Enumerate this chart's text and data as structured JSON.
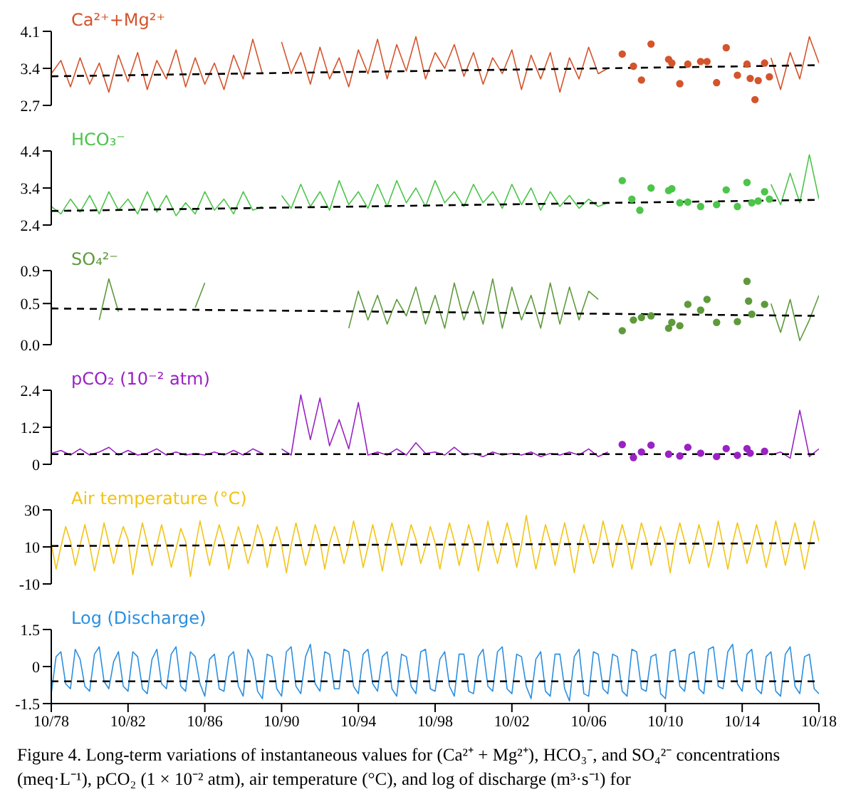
{
  "chart_data": [
    {
      "type": "line",
      "title": "Ca²⁺+Mg²⁺",
      "xlim": [
        "1978-10",
        "2018-10"
      ],
      "ylim": [
        2.7,
        4.1
      ],
      "yticks": [
        2.7,
        3.4,
        4.1
      ],
      "tick_labels": "y",
      "x": [
        "1978-10",
        "1979-04",
        "1979-10",
        "1980-04",
        "1980-10",
        "1981-04",
        "1981-10",
        "1982-04",
        "1982-10",
        "1983-04",
        "1983-10",
        "1984-04",
        "1984-10",
        "1985-04",
        "1985-10",
        "1986-04",
        "1986-10",
        "1987-04",
        "1987-10",
        "1988-04",
        "1988-10",
        "1989-04",
        "1989-10",
        "1990-04",
        "1990-10",
        "1991-04",
        "1991-10",
        "1992-04",
        "1992-10",
        "1993-04",
        "1993-10",
        "1994-04",
        "1994-10",
        "1995-04",
        "1995-10",
        "1996-04",
        "1996-10",
        "1997-04",
        "1997-10",
        "1998-04",
        "1998-10",
        "1999-04",
        "1999-10",
        "2000-04",
        "2000-10",
        "2001-04",
        "2001-10",
        "2002-04",
        "2002-10",
        "2003-04",
        "2003-10",
        "2004-04",
        "2004-10",
        "2005-04",
        "2005-10",
        "2006-04",
        "2006-10",
        "2007-04",
        "2007-10",
        "2008-04",
        "2008-10",
        "2009-04",
        "2009-10",
        "2010-04",
        "2010-10",
        "2011-04",
        "2011-10",
        "2012-04",
        "2012-10",
        "2013-04",
        "2013-10",
        "2014-04",
        "2014-10",
        "2015-04",
        "2015-10",
        "2016-04",
        "2016-10",
        "2017-04",
        "2017-10",
        "2018-04",
        "2018-10"
      ],
      "series": [
        {
          "color": "#d4542c",
          "values": [
            3.3,
            3.55,
            3.05,
            3.6,
            3.1,
            3.5,
            2.95,
            3.65,
            3.15,
            3.7,
            3.0,
            3.55,
            3.2,
            3.75,
            3.05,
            3.6,
            3.1,
            3.5,
            3.0,
            3.65,
            3.2,
            3.95,
            3.3,
            null,
            3.9,
            3.3,
            3.7,
            3.1,
            3.8,
            3.2,
            3.6,
            3.05,
            3.75,
            3.3,
            3.95,
            3.2,
            3.85,
            3.35,
            4.0,
            3.2,
            3.7,
            3.4,
            3.85,
            3.25,
            3.7,
            3.1,
            3.6,
            3.3,
            3.75,
            3.0,
            3.65,
            3.2,
            3.7,
            2.95,
            3.6,
            3.2,
            3.8,
            3.3,
            3.4,
            null,
            null,
            null,
            null,
            null,
            null,
            null,
            null,
            null,
            null,
            null,
            null,
            null,
            null,
            null,
            null,
            3.6,
            3.0,
            3.7,
            3.2,
            4.0,
            3.5
          ]
        },
        {
          "type": "scatter",
          "marker": "circle",
          "color": "#d4542c",
          "x": [
            "2008-07",
            "2009-02",
            "2009-07",
            "2010-01",
            "2010-12",
            "2011-02",
            "2011-07",
            "2011-12",
            "2012-08",
            "2012-12",
            "2013-06",
            "2013-12",
            "2014-07",
            "2015-01",
            "2015-03",
            "2015-06",
            "2015-08",
            "2015-12",
            "2016-03"
          ],
          "values": [
            3.67,
            3.44,
            3.18,
            3.86,
            3.57,
            3.5,
            3.11,
            3.48,
            3.53,
            3.53,
            3.13,
            3.79,
            3.27,
            3.48,
            3.21,
            2.81,
            3.17,
            3.5,
            3.24
          ]
        },
        {
          "color": "#000000",
          "line_style": "dashed",
          "x": [
            "1978-10",
            "2018-10"
          ],
          "values": [
            3.25,
            3.46
          ]
        }
      ]
    },
    {
      "type": "line",
      "title": "HCO₃⁻",
      "xlim": [
        "1978-10",
        "2018-10"
      ],
      "ylim": [
        2.4,
        4.4
      ],
      "yticks": [
        2.4,
        3.4,
        4.4
      ],
      "tick_labels": "y",
      "x": [
        "1978-10",
        "1979-04",
        "1979-10",
        "1980-04",
        "1980-10",
        "1981-04",
        "1981-10",
        "1982-04",
        "1982-10",
        "1983-04",
        "1983-10",
        "1984-04",
        "1984-10",
        "1985-04",
        "1985-10",
        "1986-04",
        "1986-10",
        "1987-04",
        "1987-10",
        "1988-04",
        "1988-10",
        "1989-04",
        "1989-10",
        "1990-04",
        "1990-10",
        "1991-04",
        "1991-10",
        "1992-04",
        "1992-10",
        "1993-04",
        "1993-10",
        "1994-04",
        "1994-10",
        "1995-04",
        "1995-10",
        "1996-04",
        "1996-10",
        "1997-04",
        "1997-10",
        "1998-04",
        "1998-10",
        "1999-04",
        "1999-10",
        "2000-04",
        "2000-10",
        "2001-04",
        "2001-10",
        "2002-04",
        "2002-10",
        "2003-04",
        "2003-10",
        "2004-04",
        "2004-10",
        "2005-04",
        "2005-10",
        "2006-04",
        "2006-10",
        "2007-04",
        "2007-10",
        "2008-04",
        "2008-10",
        "2009-04",
        "2009-10",
        "2010-04",
        "2010-10",
        "2011-04",
        "2011-10",
        "2012-04",
        "2012-10",
        "2013-04",
        "2013-10",
        "2014-04",
        "2014-10",
        "2015-04",
        "2015-10",
        "2016-04",
        "2016-10",
        "2017-04",
        "2017-10",
        "2018-04",
        "2018-10"
      ],
      "series": [
        {
          "color": "#4cc54a",
          "values": [
            2.9,
            2.7,
            3.1,
            2.75,
            3.2,
            2.7,
            3.3,
            2.8,
            3.1,
            2.7,
            3.3,
            2.75,
            3.2,
            2.65,
            3.0,
            2.7,
            3.3,
            2.8,
            3.1,
            2.7,
            3.3,
            2.8,
            2.9,
            null,
            3.2,
            2.85,
            3.5,
            2.9,
            3.3,
            2.8,
            3.6,
            2.95,
            3.3,
            2.85,
            3.5,
            2.9,
            3.6,
            3.0,
            3.4,
            2.9,
            3.6,
            3.0,
            3.3,
            2.9,
            3.5,
            3.0,
            3.3,
            2.85,
            3.5,
            2.95,
            3.4,
            2.8,
            3.3,
            2.9,
            3.2,
            2.85,
            3.1,
            2.9,
            3.0,
            null,
            null,
            null,
            null,
            null,
            null,
            null,
            null,
            null,
            null,
            null,
            null,
            null,
            null,
            null,
            null,
            3.5,
            2.95,
            3.8,
            3.0,
            4.3,
            3.1
          ]
        },
        {
          "type": "scatter",
          "marker": "circle",
          "color": "#4cc54a",
          "x": [
            "2008-07",
            "2009-01",
            "2009-06",
            "2010-01",
            "2010-12",
            "2011-02",
            "2011-07",
            "2011-12",
            "2012-08",
            "2013-06",
            "2013-12",
            "2014-07",
            "2015-01",
            "2015-04",
            "2015-08",
            "2015-12",
            "2016-03"
          ],
          "values": [
            3.6,
            3.1,
            2.8,
            3.4,
            3.33,
            3.38,
            3.0,
            3.02,
            2.9,
            2.95,
            3.35,
            2.9,
            3.55,
            3.0,
            3.05,
            3.3,
            3.1
          ]
        },
        {
          "color": "#000000",
          "line_style": "dashed",
          "x": [
            "1978-10",
            "2018-10"
          ],
          "values": [
            2.78,
            3.08
          ]
        }
      ]
    },
    {
      "type": "line",
      "title": "SO₄²⁻",
      "xlim": [
        "1978-10",
        "2018-10"
      ],
      "ylim": [
        0,
        0.9
      ],
      "yticks": [
        {
          "value": 0,
          "label": "0.0"
        },
        0.5,
        0.9
      ],
      "tick_labels": "y",
      "x": [
        "1981-04",
        "1981-10",
        "1982-04",
        "1982-10",
        "1983-04",
        "1983-10",
        "1984-04",
        "1984-10",
        "1985-04",
        "1985-10",
        "1986-04",
        "1986-10",
        "1987-04",
        "1987-10",
        "1988-04",
        "1988-10",
        "1989-04",
        "1989-10",
        "1990-04",
        "1990-10",
        "1991-04",
        "1991-10",
        "1992-04",
        "1992-10",
        "1993-04",
        "1993-10",
        "1994-04",
        "1994-10",
        "1995-04",
        "1995-10",
        "1996-04",
        "1996-10",
        "1997-04",
        "1997-10",
        "1998-04",
        "1998-10",
        "1999-04",
        "1999-10",
        "2000-04",
        "2000-10",
        "2001-04",
        "2001-10",
        "2002-04",
        "2002-10",
        "2003-04",
        "2003-10",
        "2004-04",
        "2004-10",
        "2005-04",
        "2005-10",
        "2006-04",
        "2006-10",
        "2007-04",
        "2007-10",
        "2008-04",
        "2008-10",
        "2009-04",
        "2009-10",
        "2010-04",
        "2010-10",
        "2011-04",
        "2011-10",
        "2012-04",
        "2012-10",
        "2013-04",
        "2013-10",
        "2014-04",
        "2014-10",
        "2015-04",
        "2015-10",
        "2016-04",
        "2016-10",
        "2017-04",
        "2017-10",
        "2018-04",
        "2018-10"
      ],
      "series": [
        {
          "color": "#5e9a3c",
          "values": [
            0.3,
            0.8,
            0.4,
            null,
            null,
            null,
            null,
            null,
            null,
            null,
            0.45,
            0.75,
            null,
            null,
            null,
            null,
            null,
            null,
            null,
            null,
            null,
            null,
            null,
            null,
            null,
            null,
            0.2,
            0.65,
            0.3,
            0.6,
            0.25,
            0.55,
            0.35,
            0.7,
            0.25,
            0.6,
            0.2,
            0.75,
            0.3,
            0.65,
            0.25,
            0.8,
            0.2,
            0.7,
            0.3,
            0.6,
            0.2,
            0.75,
            0.25,
            0.7,
            0.3,
            0.65,
            0.55,
            null,
            null,
            null,
            null,
            null,
            null,
            null,
            null,
            null,
            null,
            null,
            null,
            null,
            null,
            null,
            null,
            null,
            0.5,
            0.15,
            0.55,
            0.05,
            0.3,
            0.6
          ]
        },
        {
          "type": "scatter",
          "marker": "circle",
          "color": "#5e9a3c",
          "x": [
            "2008-07",
            "2009-02",
            "2009-07",
            "2010-01",
            "2010-12",
            "2011-02",
            "2011-07",
            "2011-12",
            "2012-08",
            "2012-12",
            "2013-06",
            "2014-07",
            "2015-01",
            "2015-02",
            "2015-04",
            "2015-12"
          ],
          "values": [
            0.17,
            0.3,
            0.33,
            0.35,
            0.2,
            0.27,
            0.23,
            0.49,
            0.42,
            0.55,
            0.27,
            0.28,
            0.77,
            0.53,
            0.37,
            0.49
          ]
        },
        {
          "color": "#000000",
          "line_style": "dashed",
          "x": [
            "1978-10",
            "2018-10"
          ],
          "values": [
            0.44,
            0.35
          ]
        }
      ]
    },
    {
      "type": "line",
      "title": "pCO₂ (10⁻² atm)",
      "xlim": [
        "1978-10",
        "2018-10"
      ],
      "ylim": [
        0,
        2.4
      ],
      "yticks": [
        0,
        1.2,
        2.4
      ],
      "tick_labels": "y",
      "x": [
        "1978-10",
        "1979-04",
        "1979-10",
        "1980-04",
        "1980-10",
        "1981-04",
        "1981-10",
        "1982-04",
        "1982-10",
        "1983-04",
        "1983-10",
        "1984-04",
        "1984-10",
        "1985-04",
        "1985-10",
        "1986-04",
        "1986-10",
        "1987-04",
        "1987-10",
        "1988-04",
        "1988-10",
        "1989-04",
        "1989-10",
        "1990-04",
        "1990-10",
        "1991-04",
        "1991-10",
        "1992-04",
        "1992-10",
        "1993-04",
        "1993-10",
        "1994-04",
        "1994-10",
        "1995-04",
        "1995-10",
        "1996-04",
        "1996-10",
        "1997-04",
        "1997-10",
        "1998-04",
        "1998-10",
        "1999-04",
        "1999-10",
        "2000-04",
        "2000-10",
        "2001-04",
        "2001-10",
        "2002-04",
        "2002-10",
        "2003-04",
        "2003-10",
        "2004-04",
        "2004-10",
        "2005-04",
        "2005-10",
        "2006-04",
        "2006-10",
        "2007-04",
        "2007-10",
        "2008-04",
        "2008-10",
        "2009-04",
        "2009-10",
        "2010-04",
        "2010-10",
        "2011-04",
        "2011-10",
        "2012-04",
        "2012-10",
        "2013-04",
        "2013-10",
        "2014-04",
        "2014-10",
        "2015-04",
        "2015-10",
        "2016-04",
        "2016-10",
        "2017-04",
        "2017-10",
        "2018-04",
        "2018-10"
      ],
      "series": [
        {
          "color": "#9a22c4",
          "values": [
            0.35,
            0.45,
            0.3,
            0.5,
            0.3,
            0.4,
            0.55,
            0.3,
            0.45,
            0.3,
            0.35,
            0.5,
            0.3,
            0.4,
            0.3,
            0.35,
            0.3,
            0.4,
            0.3,
            0.45,
            0.3,
            0.5,
            0.35,
            null,
            0.5,
            0.3,
            2.25,
            0.8,
            2.15,
            0.6,
            1.45,
            0.5,
            2.0,
            0.3,
            0.4,
            0.3,
            0.5,
            0.3,
            0.7,
            0.35,
            0.4,
            0.3,
            0.55,
            0.3,
            0.35,
            0.25,
            0.4,
            0.3,
            0.35,
            0.3,
            0.4,
            0.25,
            0.35,
            0.3,
            0.4,
            0.3,
            0.5,
            0.25,
            0.4,
            null,
            null,
            null,
            null,
            null,
            null,
            null,
            null,
            null,
            null,
            null,
            null,
            null,
            null,
            null,
            null,
            0.3,
            0.4,
            0.2,
            1.75,
            0.25,
            0.5
          ]
        },
        {
          "type": "scatter",
          "marker": "circle",
          "color": "#9a22c4",
          "x": [
            "2008-07",
            "2009-02",
            "2009-07",
            "2010-01",
            "2010-12",
            "2011-07",
            "2011-12",
            "2012-08",
            "2013-06",
            "2013-12",
            "2014-07",
            "2015-01",
            "2015-03",
            "2015-12"
          ],
          "values": [
            0.64,
            0.22,
            0.4,
            0.62,
            0.33,
            0.27,
            0.55,
            0.36,
            0.25,
            0.51,
            0.29,
            0.51,
            0.36,
            0.42
          ]
        },
        {
          "color": "#000000",
          "line_style": "dashed",
          "x": [
            "1978-10",
            "2018-10"
          ],
          "values": [
            0.33,
            0.33
          ]
        }
      ]
    },
    {
      "type": "line",
      "title": "Air temperature (°C)",
      "xlim": [
        "1978-10",
        "2018-10"
      ],
      "ylim": [
        -10,
        30
      ],
      "yticks": [
        -10,
        10,
        30
      ],
      "tick_labels": "y",
      "x": [
        "1978-10",
        "1979-01",
        "1979-04",
        "1979-07",
        "1979-10",
        "1980-01",
        "1980-04",
        "1980-07",
        "1980-10",
        "1981-01",
        "1981-04",
        "1981-07",
        "1981-10",
        "1982-01",
        "1982-04",
        "1982-07",
        "1982-10",
        "1983-01",
        "1983-04",
        "1983-07",
        "1983-10",
        "1984-01",
        "1984-04",
        "1984-07",
        "1984-10",
        "1985-01",
        "1985-04",
        "1985-07",
        "1985-10",
        "1986-01",
        "1986-04",
        "1986-07",
        "1986-10",
        "1987-01",
        "1987-04",
        "1987-07",
        "1987-10",
        "1988-01",
        "1988-04",
        "1988-07",
        "1988-10",
        "1989-01",
        "1989-04",
        "1989-07",
        "1989-10",
        "1990-01",
        "1990-04",
        "1990-07",
        "1990-10",
        "1991-01",
        "1991-04",
        "1991-07",
        "1991-10",
        "1992-01",
        "1992-04",
        "1992-07",
        "1992-10",
        "1993-01",
        "1993-04",
        "1993-07",
        "1993-10",
        "1994-01",
        "1994-04",
        "1994-07",
        "1994-10",
        "1995-01",
        "1995-04",
        "1995-07",
        "1995-10",
        "1996-01",
        "1996-04",
        "1996-07",
        "1996-10",
        "1997-01",
        "1997-04",
        "1997-07",
        "1997-10",
        "1998-01",
        "1998-04",
        "1998-07",
        "1998-10",
        "1999-01",
        "1999-04",
        "1999-07",
        "1999-10",
        "2000-01",
        "2000-04",
        "2000-07",
        "2000-10",
        "2001-01",
        "2001-04",
        "2001-07",
        "2001-10",
        "2002-01",
        "2002-04",
        "2002-07",
        "2002-10",
        "2003-01",
        "2003-04",
        "2003-07",
        "2003-10",
        "2004-01",
        "2004-04",
        "2004-07",
        "2004-10",
        "2005-01",
        "2005-04",
        "2005-07",
        "2005-10",
        "2006-01",
        "2006-04",
        "2006-07",
        "2006-10",
        "2007-01",
        "2007-04",
        "2007-07",
        "2007-10",
        "2008-01",
        "2008-04",
        "2008-07",
        "2008-10",
        "2009-01",
        "2009-04",
        "2009-07",
        "2009-10",
        "2010-01",
        "2010-04",
        "2010-07",
        "2010-10",
        "2011-01",
        "2011-04",
        "2011-07",
        "2011-10",
        "2012-01",
        "2012-04",
        "2012-07",
        "2012-10",
        "2013-01",
        "2013-04",
        "2013-07",
        "2013-10",
        "2014-01",
        "2014-04",
        "2014-07",
        "2014-10",
        "2015-01",
        "2015-04",
        "2015-07",
        "2015-10",
        "2016-01",
        "2016-04",
        "2016-07",
        "2016-10",
        "2017-01",
        "2017-04",
        "2017-07",
        "2017-10",
        "2018-01",
        "2018-04",
        "2018-07",
        "2018-10"
      ],
      "series": [
        {
          "color": "#f2c417",
          "values": [
            12,
            -2,
            10,
            21,
            13,
            0,
            11,
            22,
            11,
            -3,
            9,
            23,
            12,
            1,
            12,
            21,
            14,
            -5,
            10,
            23,
            12,
            0,
            11,
            22,
            11,
            -1,
            9,
            20,
            13,
            -6,
            10,
            24,
            12,
            0,
            12,
            22,
            13,
            -2,
            11,
            21,
            12,
            1,
            10,
            22,
            14,
            -1,
            12,
            21,
            11,
            -4,
            11,
            23,
            12,
            0,
            10,
            22,
            13,
            -2,
            12,
            21,
            12,
            1,
            11,
            24,
            13,
            -1,
            10,
            22,
            11,
            -3,
            12,
            23,
            12,
            0,
            11,
            22,
            14,
            1,
            10,
            21,
            12,
            -2,
            12,
            23,
            13,
            0,
            11,
            22,
            12,
            -3,
            10,
            24,
            11,
            1,
            12,
            23,
            13,
            -1,
            11,
            27,
            12,
            -2,
            10,
            22,
            13,
            0,
            12,
            23,
            11,
            -4,
            11,
            22,
            12,
            1,
            10,
            24,
            13,
            -1,
            12,
            22,
            12,
            -2,
            11,
            23,
            14,
            0,
            10,
            21,
            12,
            -4,
            12,
            23,
            13,
            1,
            11,
            22,
            12,
            -1,
            10,
            24,
            11,
            -2,
            12,
            23,
            13,
            1,
            11,
            22,
            12,
            -1,
            10,
            24,
            13,
            0,
            12,
            23,
            12,
            -2,
            11,
            24,
            13
          ]
        },
        {
          "color": "#000000",
          "line_style": "dashed",
          "x": [
            "1978-10",
            "2018-10"
          ],
          "values": [
            10.5,
            12
          ]
        }
      ]
    },
    {
      "type": "line",
      "title": "Log (Discharge)",
      "xlim": [
        "1978-10",
        "2018-10"
      ],
      "ylim": [
        -1.5,
        1.5
      ],
      "yticks": [
        -1.5,
        0,
        1.5
      ],
      "xticks": [
        {
          "value": "1978-10",
          "label": "10/78"
        },
        {
          "value": "1982-10",
          "label": "10/82"
        },
        {
          "value": "1986-10",
          "label": "10/86"
        },
        {
          "value": "1990-10",
          "label": "10/90"
        },
        {
          "value": "1994-10",
          "label": "10/94"
        },
        {
          "value": "1998-10",
          "label": "10/98"
        },
        {
          "value": "2002-10",
          "label": "10/02"
        },
        {
          "value": "2006-10",
          "label": "10/06"
        },
        {
          "value": "2010-10",
          "label": "10/10"
        },
        {
          "value": "2014-10",
          "label": "10/14"
        },
        {
          "value": "2018-10",
          "label": "10/18"
        }
      ],
      "x": [
        "1978-10",
        "1979-01",
        "1979-04",
        "1979-07",
        "1979-10",
        "1980-01",
        "1980-04",
        "1980-07",
        "1980-10",
        "1981-01",
        "1981-04",
        "1981-07",
        "1981-10",
        "1982-01",
        "1982-04",
        "1982-07",
        "1982-10",
        "1983-01",
        "1983-04",
        "1983-07",
        "1983-10",
        "1984-01",
        "1984-04",
        "1984-07",
        "1984-10",
        "1985-01",
        "1985-04",
        "1985-07",
        "1985-10",
        "1986-01",
        "1986-04",
        "1986-07",
        "1986-10",
        "1987-01",
        "1987-04",
        "1987-07",
        "1987-10",
        "1988-01",
        "1988-04",
        "1988-07",
        "1988-10",
        "1989-01",
        "1989-04",
        "1989-07",
        "1989-10",
        "1990-01",
        "1990-04",
        "1990-07",
        "1990-10",
        "1991-01",
        "1991-04",
        "1991-07",
        "1991-10",
        "1992-01",
        "1992-04",
        "1992-07",
        "1992-10",
        "1993-01",
        "1993-04",
        "1993-07",
        "1993-10",
        "1994-01",
        "1994-04",
        "1994-07",
        "1994-10",
        "1995-01",
        "1995-04",
        "1995-07",
        "1995-10",
        "1996-01",
        "1996-04",
        "1996-07",
        "1996-10",
        "1997-01",
        "1997-04",
        "1997-07",
        "1997-10",
        "1998-01",
        "1998-04",
        "1998-07",
        "1998-10",
        "1999-01",
        "1999-04",
        "1999-07",
        "1999-10",
        "2000-01",
        "2000-04",
        "2000-07",
        "2000-10",
        "2001-01",
        "2001-04",
        "2001-07",
        "2001-10",
        "2002-01",
        "2002-04",
        "2002-07",
        "2002-10",
        "2003-01",
        "2003-04",
        "2003-07",
        "2003-10",
        "2004-01",
        "2004-04",
        "2004-07",
        "2004-10",
        "2005-01",
        "2005-04",
        "2005-07",
        "2005-10",
        "2006-01",
        "2006-04",
        "2006-07",
        "2006-10",
        "2007-01",
        "2007-04",
        "2007-07",
        "2007-10",
        "2008-01",
        "2008-04",
        "2008-07",
        "2008-10",
        "2009-01",
        "2009-04",
        "2009-07",
        "2009-10",
        "2010-01",
        "2010-04",
        "2010-07",
        "2010-10",
        "2011-01",
        "2011-04",
        "2011-07",
        "2011-10",
        "2012-01",
        "2012-04",
        "2012-07",
        "2012-10",
        "2013-01",
        "2013-04",
        "2013-07",
        "2013-10",
        "2014-01",
        "2014-04",
        "2014-07",
        "2014-10",
        "2015-01",
        "2015-04",
        "2015-07",
        "2015-10",
        "2016-01",
        "2016-04",
        "2016-07",
        "2016-10",
        "2017-01",
        "2017-04",
        "2017-07",
        "2017-10",
        "2018-01",
        "2018-04",
        "2018-07",
        "2018-10"
      ],
      "series": [
        {
          "color": "#2b8fe0",
          "values": [
            -1.1,
            0.4,
            0.6,
            -0.7,
            -0.9,
            0.7,
            0.3,
            -0.8,
            -1.0,
            0.5,
            0.8,
            -0.6,
            -0.9,
            0.2,
            0.6,
            -0.8,
            -1.0,
            0.6,
            0.4,
            -0.9,
            -1.1,
            0.3,
            0.7,
            -0.7,
            -0.9,
            0.5,
            0.8,
            -0.8,
            -1.0,
            0.6,
            0.4,
            -0.7,
            -1.2,
            0.3,
            0.5,
            -0.9,
            -1.0,
            0.4,
            0.6,
            -0.8,
            -1.2,
            0.7,
            0.3,
            -1.0,
            -1.3,
            0.5,
            0.4,
            -0.9,
            -1.2,
            0.6,
            0.8,
            -0.8,
            -1.1,
            0.4,
            0.9,
            -0.7,
            -1.0,
            0.6,
            0.5,
            -0.9,
            -0.9,
            0.7,
            0.6,
            -0.8,
            -1.1,
            0.5,
            0.7,
            -0.7,
            -1.0,
            0.4,
            0.6,
            -0.9,
            -1.2,
            0.5,
            0.4,
            -0.8,
            -1.1,
            0.6,
            0.7,
            -0.9,
            -1.0,
            0.3,
            0.6,
            -0.8,
            -1.2,
            0.5,
            0.5,
            -1.0,
            -1.1,
            0.4,
            0.7,
            -0.8,
            -1.0,
            0.6,
            0.8,
            -0.9,
            -1.1,
            0.5,
            0.4,
            -0.8,
            -1.3,
            0.3,
            0.6,
            -1.0,
            -1.2,
            0.5,
            0.5,
            -0.9,
            -1.4,
            0.4,
            0.7,
            -1.1,
            -1.2,
            0.6,
            0.5,
            -0.9,
            -1.1,
            0.5,
            0.4,
            -1.0,
            -1.2,
            0.7,
            0.6,
            -0.9,
            -1.0,
            0.4,
            0.5,
            -1.1,
            -1.3,
            0.6,
            0.7,
            -0.8,
            -1.0,
            0.5,
            0.6,
            -0.9,
            -1.1,
            0.7,
            0.8,
            -0.8,
            -0.9,
            0.6,
            0.9,
            -0.7,
            -1.0,
            0.5,
            0.7,
            -0.9,
            -1.1,
            0.4,
            0.6,
            -1.0,
            -1.2,
            0.5,
            0.8,
            -0.8,
            -1.1,
            0.4,
            0.5,
            -0.9,
            -1.1
          ]
        },
        {
          "color": "#000000",
          "line_style": "dashed",
          "x": [
            "1978-10",
            "2018-10"
          ],
          "values": [
            -0.6,
            -0.6
          ]
        }
      ],
      "annotations": [
        "Figure 4. Long-term variations of instantaneous values for (Ca²⁺ + Mg²⁺), HCO₃⁻, and SO₄²⁻ concentrations (meq·L⁻¹), pCO₂ (1 × 10⁻² atm), air temperature (°C), and log of discharge (m³·s⁻¹) for"
      ]
    }
  ]
}
